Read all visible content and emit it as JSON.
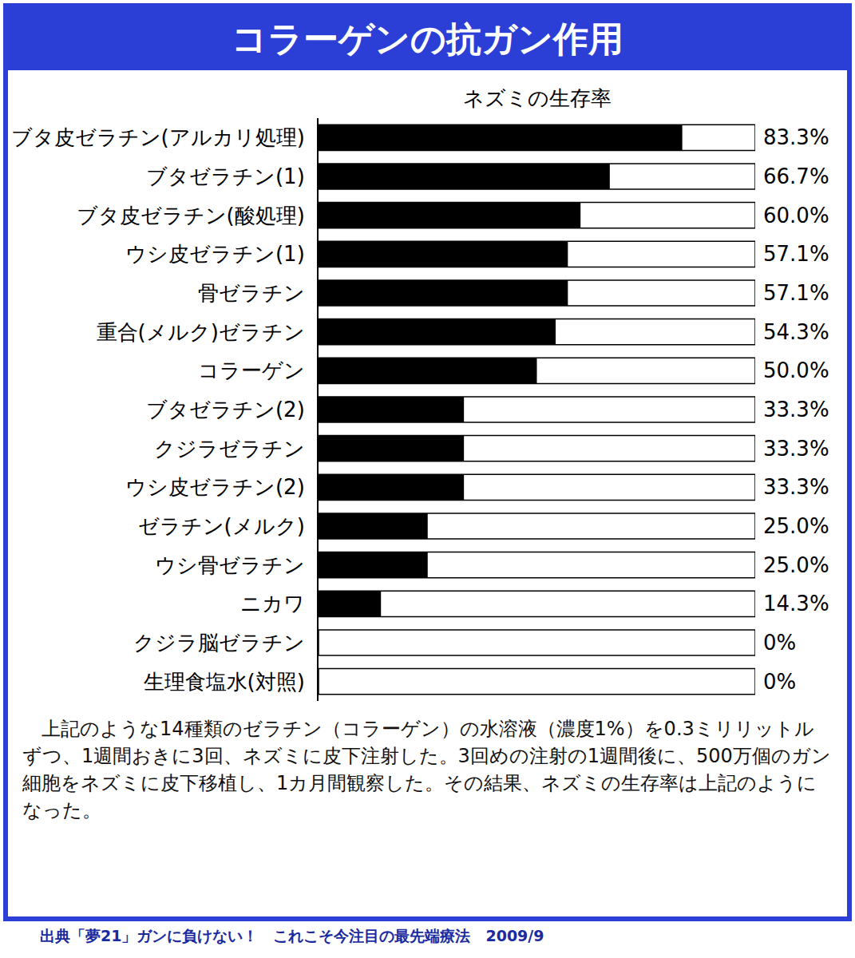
{
  "chart_data": {
    "type": "bar",
    "orientation": "horizontal",
    "title": "コラーゲンの抗ガン作用",
    "subtitle": "ネズミの生存率",
    "categories": [
      "ブタ皮ゼラチン(アルカリ処理)",
      "ブタゼラチン(1)",
      "ブタ皮ゼラチン(酸処理)",
      "ウシ皮ゼラチン(1)",
      "骨ゼラチン",
      "重合(メルク)ゼラチン",
      "コラーゲン",
      "ブタゼラチン(2)",
      "クジラゼラチン",
      "ウシ皮ゼラチン(2)",
      "ゼラチン(メルク)",
      "ウシ骨ゼラチン",
      "ニカワ",
      "クジラ脳ゼラチン",
      "生理食塩水(対照)"
    ],
    "values": [
      83.3,
      66.7,
      60.0,
      57.1,
      57.1,
      54.3,
      50.0,
      33.3,
      33.3,
      33.3,
      25.0,
      25.0,
      14.3,
      0,
      0
    ],
    "value_labels": [
      "83.3%",
      "66.7%",
      "60.0%",
      "57.1%",
      "57.1%",
      "54.3%",
      "50.0%",
      "33.3%",
      "33.3%",
      "33.3%",
      "25.0%",
      "25.0%",
      "14.3%",
      "0%",
      "0%"
    ],
    "color": "#000000",
    "xlim": [
      0,
      100
    ],
    "data_labels": true,
    "tick_labels": "y",
    "grid": false,
    "annotations": [
      "上記のような14種類のゼラチン（コラーゲン）の水溶液（濃度1%）を0.3ミリリットルずつ、1週間おきに3回、ネズミに皮下注射した。3回めの注射の1週間後に、500万個のガン細胞をネズミに皮下移植し、1カ月間観察した。その結果、ネズミの生存率は上記のようになった。",
      "出典「夢21」ガンに負けない！　これこそ今注目の最先端療法　2009/9"
    ]
  }
}
